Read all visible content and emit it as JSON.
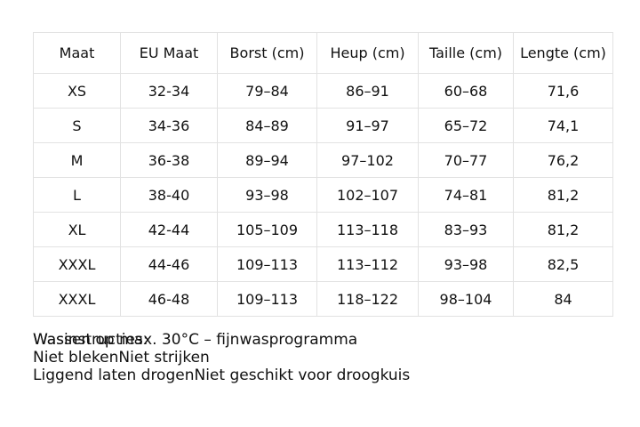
{
  "table": {
    "header": [
      "Maat",
      "EU Maat",
      "Borst (cm)",
      "Heup (cm)",
      "Taille (cm)",
      "Lengte (cm)"
    ],
    "rows": [
      [
        "XS",
        "32-34",
        "79–84",
        "86–91",
        "60–68",
        "71,6"
      ],
      [
        "S",
        "34-36",
        "84–89",
        "91–97",
        "65–72",
        "74,1"
      ],
      [
        "M",
        "36-38",
        "89–94",
        "97–102",
        "70–77",
        "76,2"
      ],
      [
        "L",
        "38-40",
        "93–98",
        "102–107",
        "74–81",
        "81,2"
      ],
      [
        "XL",
        "42-44",
        "105–109",
        "113–118",
        "83–93",
        "81,2"
      ],
      [
        "XXXL",
        "44-46",
        "109–113",
        "113–112",
        "93–98",
        "82,5"
      ],
      [
        "XXXL",
        "46-48",
        "109–113",
        "118–122",
        "98–104",
        "84"
      ]
    ]
  },
  "care": {
    "label": "Wasinstructies:",
    "lines": [
      [
        "Wassen op max. 30°C – fijnwasprogramma"
      ],
      [
        "Niet bleken",
        "Niet strijken"
      ],
      [
        "Liggend laten drogen",
        "Niet geschikt voor droogkuis"
      ]
    ]
  }
}
